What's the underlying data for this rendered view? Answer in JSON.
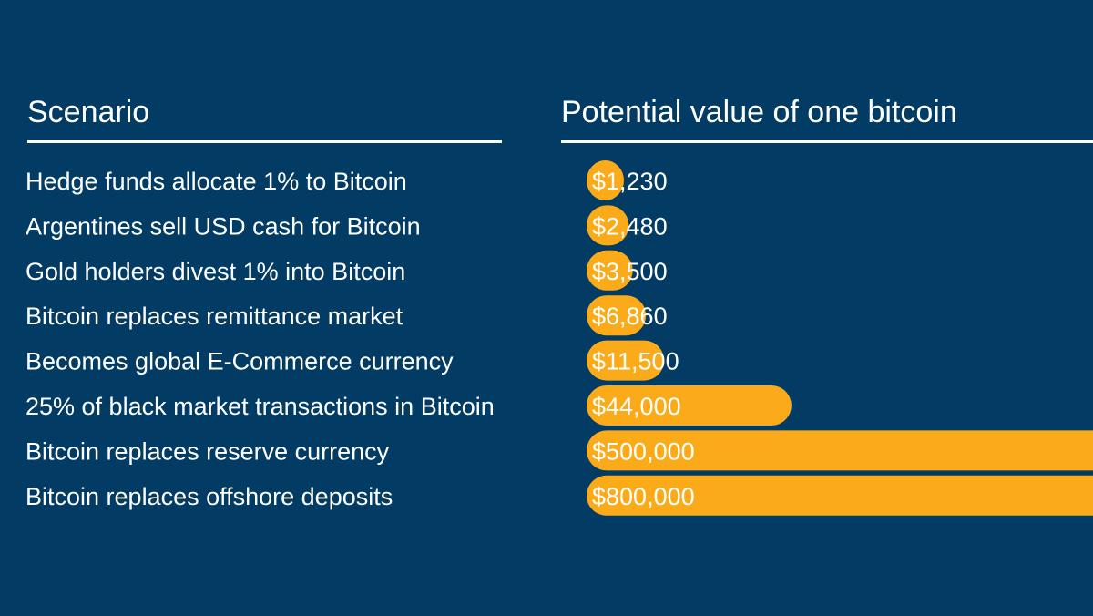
{
  "headers": {
    "scenario": "Scenario",
    "value": "Potential value of one bitcoin"
  },
  "colors": {
    "background": "#023b63",
    "bar": "#fbab19",
    "text": "#ffffff"
  },
  "chart_data": {
    "type": "bar",
    "orientation": "horizontal",
    "categories": [
      "Hedge funds allocate 1% to Bitcoin",
      "Argentines sell USD cash for Bitcoin",
      "Gold holders divest 1% into Bitcoin",
      "Bitcoin replaces remittance market",
      "Becomes global E-Commerce currency",
      "25% of black market transactions in Bitcoin",
      "Bitcoin replaces reserve currency",
      "Bitcoin replaces offshore deposits"
    ],
    "values": [
      1230,
      2480,
      3500,
      6860,
      11500,
      44000,
      500000,
      800000
    ],
    "value_labels": [
      "$1,230",
      "$2,480",
      "$3,500",
      "$6,860",
      "$11,500",
      "$44,000",
      "$500,000",
      "$800,000"
    ],
    "bars_truncated_at_right_edge": true,
    "grid": false,
    "legend": "none"
  }
}
